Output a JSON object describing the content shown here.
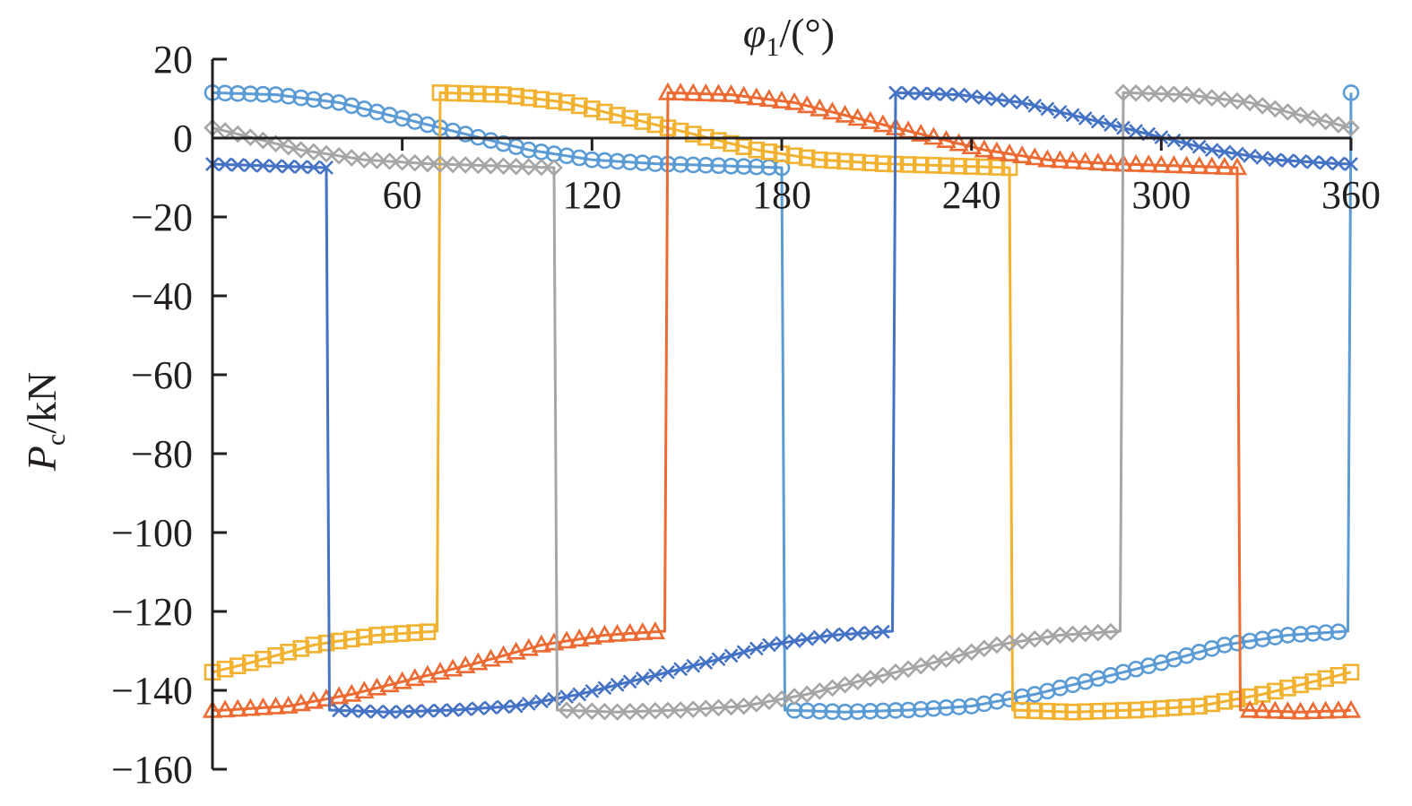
{
  "chart_data": {
    "type": "line",
    "xlabel_var": "φ",
    "xlabel_sub": "1",
    "xlabel_unit": "/(°)",
    "ylabel_var": "P",
    "ylabel_sub": "c",
    "ylabel_unit": "/kN",
    "xlim": [
      0,
      360
    ],
    "ylim": [
      -160,
      20
    ],
    "x_ticks": [
      60,
      120,
      180,
      240,
      300,
      360
    ],
    "y_ticks": [
      20,
      0,
      -20,
      -40,
      -60,
      -80,
      -100,
      -120,
      -140,
      -160
    ],
    "x_tick_labels": [
      "60",
      "120",
      "180",
      "240",
      "300",
      "360"
    ],
    "y_tick_labels": [
      "20",
      "0",
      "−20",
      "−40",
      "−60",
      "−80",
      "−100",
      "−120",
      "−140",
      "−160"
    ],
    "grid": false,
    "series": [
      {
        "color": "#5b9bd5",
        "marker": "circle",
        "tension_start": 0,
        "compression_start": 180,
        "offset": 0
      },
      {
        "color": "#f2b12e",
        "marker": "square",
        "tension_start": 72,
        "compression_start": 252,
        "offset": 72
      },
      {
        "color": "#ed6a32",
        "marker": "triangle",
        "tension_start": 144,
        "compression_start": 324,
        "offset": 144
      },
      {
        "color": "#4472c4",
        "marker": "x",
        "tension_start": 216,
        "compression_start": 36,
        "offset": 216
      },
      {
        "color": "#a5a5a5",
        "marker": "diamond",
        "tension_start": 288,
        "compression_start": 108,
        "offset": 288
      }
    ],
    "profile_phase_deg": [
      0,
      20,
      40,
      60,
      80,
      100,
      120,
      140,
      160,
      180,
      181,
      200,
      220,
      240,
      260,
      280,
      300,
      320,
      340,
      359
    ],
    "profile_value_kN": [
      11.5,
      11,
      9,
      5,
      1,
      -3,
      -5.5,
      -6.5,
      -7,
      -7.5,
      -145,
      -145.5,
      -145,
      -144,
      -141,
      -137,
      -133,
      -128.5,
      -126,
      -125
    ]
  }
}
